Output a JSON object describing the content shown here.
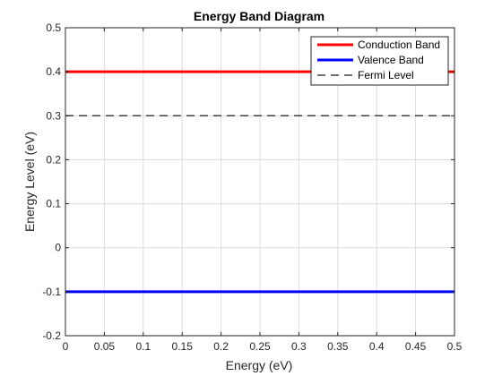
{
  "chart_data": {
    "type": "line",
    "title": "Energy Band Diagram",
    "xlabel": "Energy (eV)",
    "ylabel": "Energy Level (eV)",
    "xlim": [
      0,
      0.5
    ],
    "ylim": [
      -0.2,
      0.5
    ],
    "x_ticks": [
      0,
      0.05,
      0.1,
      0.15,
      0.2,
      0.25,
      0.3,
      0.35,
      0.4,
      0.45,
      0.5
    ],
    "x_tick_labels": [
      "0",
      "0.05",
      "0.1",
      "0.15",
      "0.2",
      "0.25",
      "0.3",
      "0.35",
      "0.4",
      "0.45",
      "0.5"
    ],
    "y_ticks": [
      -0.2,
      -0.1,
      0,
      0.1,
      0.2,
      0.3,
      0.4,
      0.5
    ],
    "y_tick_labels": [
      "-0.2",
      "-0.1",
      "0",
      "0.1",
      "0.2",
      "0.3",
      "0.4",
      "0.5"
    ],
    "grid": true,
    "legend_position": "top-right",
    "series": [
      {
        "name": "Conduction Band",
        "x": [
          0,
          0.5
        ],
        "y": [
          0.4,
          0.4
        ],
        "color": "#ff0000",
        "style": "solid"
      },
      {
        "name": "Valence Band",
        "x": [
          0,
          0.5
        ],
        "y": [
          -0.1,
          -0.1
        ],
        "color": "#0000ff",
        "style": "solid"
      },
      {
        "name": "Fermi Level",
        "x": [
          0,
          0.5
        ],
        "y": [
          0.3,
          0.3
        ],
        "color": "#404040",
        "style": "dashed"
      }
    ]
  }
}
